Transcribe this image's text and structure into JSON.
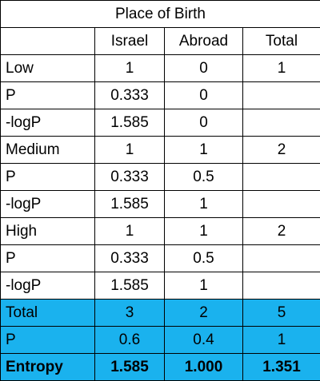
{
  "table": {
    "title": "Place of Birth",
    "columns": [
      "",
      "Israel",
      "Abroad",
      "Total"
    ],
    "rows": [
      {
        "label": "Low",
        "israel": "1",
        "abroad": "0",
        "total": "1",
        "style": "normal"
      },
      {
        "label": "P",
        "israel": "0.333",
        "abroad": "0",
        "total": "",
        "style": "normal"
      },
      {
        "label": "-logP",
        "israel": "1.585",
        "abroad": "0",
        "total": "",
        "style": "normal"
      },
      {
        "label": "Medium",
        "israel": "1",
        "abroad": "1",
        "total": "2",
        "style": "normal"
      },
      {
        "label": "P",
        "israel": "0.333",
        "abroad": "0.5",
        "total": "",
        "style": "normal"
      },
      {
        "label": "-logP",
        "israel": "1.585",
        "abroad": "1",
        "total": "",
        "style": "normal"
      },
      {
        "label": "High",
        "israel": "1",
        "abroad": "1",
        "total": "2",
        "style": "normal"
      },
      {
        "label": "P",
        "israel": "0.333",
        "abroad": "0.5",
        "total": "",
        "style": "normal"
      },
      {
        "label": "-logP",
        "israel": "1.585",
        "abroad": "1",
        "total": "",
        "style": "normal"
      },
      {
        "label": "Total",
        "israel": "3",
        "abroad": "2",
        "total": "5",
        "style": "highlight"
      },
      {
        "label": "P",
        "israel": "0.6",
        "abroad": "0.4",
        "total": "1",
        "style": "highlight"
      },
      {
        "label": "Entropy",
        "israel": "1.585",
        "abroad": "1.000",
        "total": "1.351",
        "style": "highlight-bold"
      }
    ]
  },
  "colors": {
    "highlight": "#1ab2ee",
    "border": "#000000"
  }
}
